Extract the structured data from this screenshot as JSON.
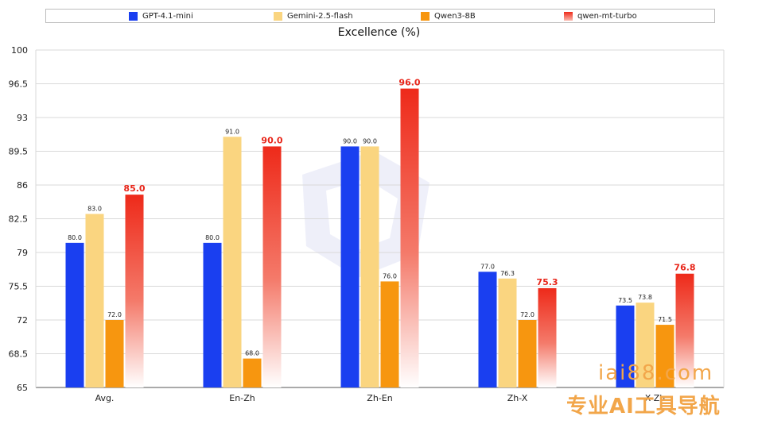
{
  "watermark": {
    "domain": "iai88.com",
    "slogan": "专业AI工具导航"
  },
  "chart_data": {
    "type": "bar",
    "title": "Excellence (%)",
    "xlabel": "",
    "ylabel": "",
    "ylim": [
      65,
      100
    ],
    "yticks": [
      "65",
      "68.5",
      "72",
      "75.5",
      "79",
      "82.5",
      "86",
      "89.5",
      "93",
      "96.5",
      "100"
    ],
    "grid": true,
    "legend_position": "top",
    "categories": [
      "Avg.",
      "En-Zh",
      "Zh-En",
      "Zh-X",
      "X-Zh"
    ],
    "series": [
      {
        "name": "GPT-4.1-mini",
        "color": "#1a3ff0",
        "values": [
          80.0,
          80.0,
          90.0,
          77.0,
          73.5
        ],
        "labels": [
          "80.0",
          "80.0",
          "90.0",
          "77.0",
          "73.5"
        ]
      },
      {
        "name": "Gemini-2.5-flash",
        "color": "#fad580",
        "values": [
          83.0,
          91.0,
          90.0,
          76.3,
          73.8
        ],
        "labels": [
          "83.0",
          "91.0",
          "90.0",
          "76.3",
          "73.8"
        ]
      },
      {
        "name": "Qwen3-8B",
        "color": "#f7960f",
        "values": [
          72.0,
          68.0,
          76.0,
          72.0,
          71.5
        ],
        "labels": [
          "72.0",
          "68.0",
          "76.0",
          "72.0",
          "71.5"
        ]
      },
      {
        "name": "qwen-mt-turbo",
        "color": "#ee2a1a",
        "values": [
          85.0,
          90.0,
          96.0,
          75.3,
          76.8
        ],
        "labels": [
          "85.0",
          "90.0",
          "96.0",
          "75.3",
          "76.8"
        ],
        "highlight": true
      }
    ]
  }
}
